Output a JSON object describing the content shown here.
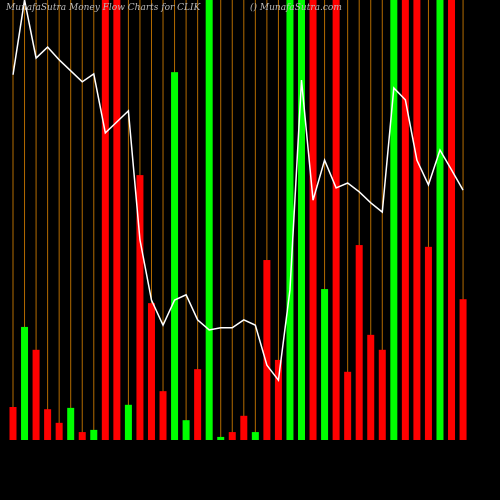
{
  "chart_data": {
    "type": "bar",
    "title": "MunafaSutra  Money Flow  Charts for CLIK",
    "subtitle": "() MunafaSutra.com",
    "ylim": [
      0,
      100
    ],
    "values": [
      7.5,
      25.7,
      20.5,
      7,
      3.9,
      7.3,
      1.8,
      2.3,
      100,
      100,
      8,
      60.2,
      31.1,
      11.1,
      83.6,
      4.5,
      16.1,
      100,
      0.7,
      1.8,
      5.5,
      1.8,
      40.9,
      18.2,
      100,
      100,
      100,
      34.3,
      100,
      15.5,
      44.3,
      23.9,
      20.5,
      100,
      100,
      100,
      43.9,
      100,
      100,
      32
    ],
    "colors": [
      "#ff0000",
      "#00ff00",
      "#ff0000",
      "#ff0000",
      "#ff0000",
      "#00ff00",
      "#ff0000",
      "#00ff00",
      "#ff0000",
      "#ff0000",
      "#00ff00",
      "#ff0000",
      "#ff0000",
      "#ff0000",
      "#00ff00",
      "#00ff00",
      "#ff0000",
      "#00ff00",
      "#00ff00",
      "#ff0000",
      "#ff0000",
      "#00ff00",
      "#ff0000",
      "#ff0000",
      "#00ff00",
      "#00ff00",
      "#ff0000",
      "#00ff00",
      "#ff0000",
      "#ff0000",
      "#ff0000",
      "#ff0000",
      "#ff0000",
      "#00ff00",
      "#ff0000",
      "#ff0000",
      "#ff0000",
      "#00ff00",
      "#ff0000",
      "#ff0000"
    ],
    "line": {
      "color": "#ffffff",
      "values": [
        83,
        100,
        86.8,
        89.3,
        86.4,
        83.9,
        81.4,
        83.2,
        69.8,
        72.3,
        74.8,
        45.5,
        31.8,
        26.1,
        31.8,
        33,
        27.3,
        25,
        25.5,
        25.5,
        27.3,
        26.1,
        17,
        13.6,
        34.1,
        81.8,
        54.5,
        63.6,
        57.3,
        58.4,
        56.4,
        53.9,
        51.8,
        80,
        77.3,
        63.6,
        58,
        65.9,
        61.4,
        56.8
      ]
    },
    "guide_color": "#b36b00"
  }
}
